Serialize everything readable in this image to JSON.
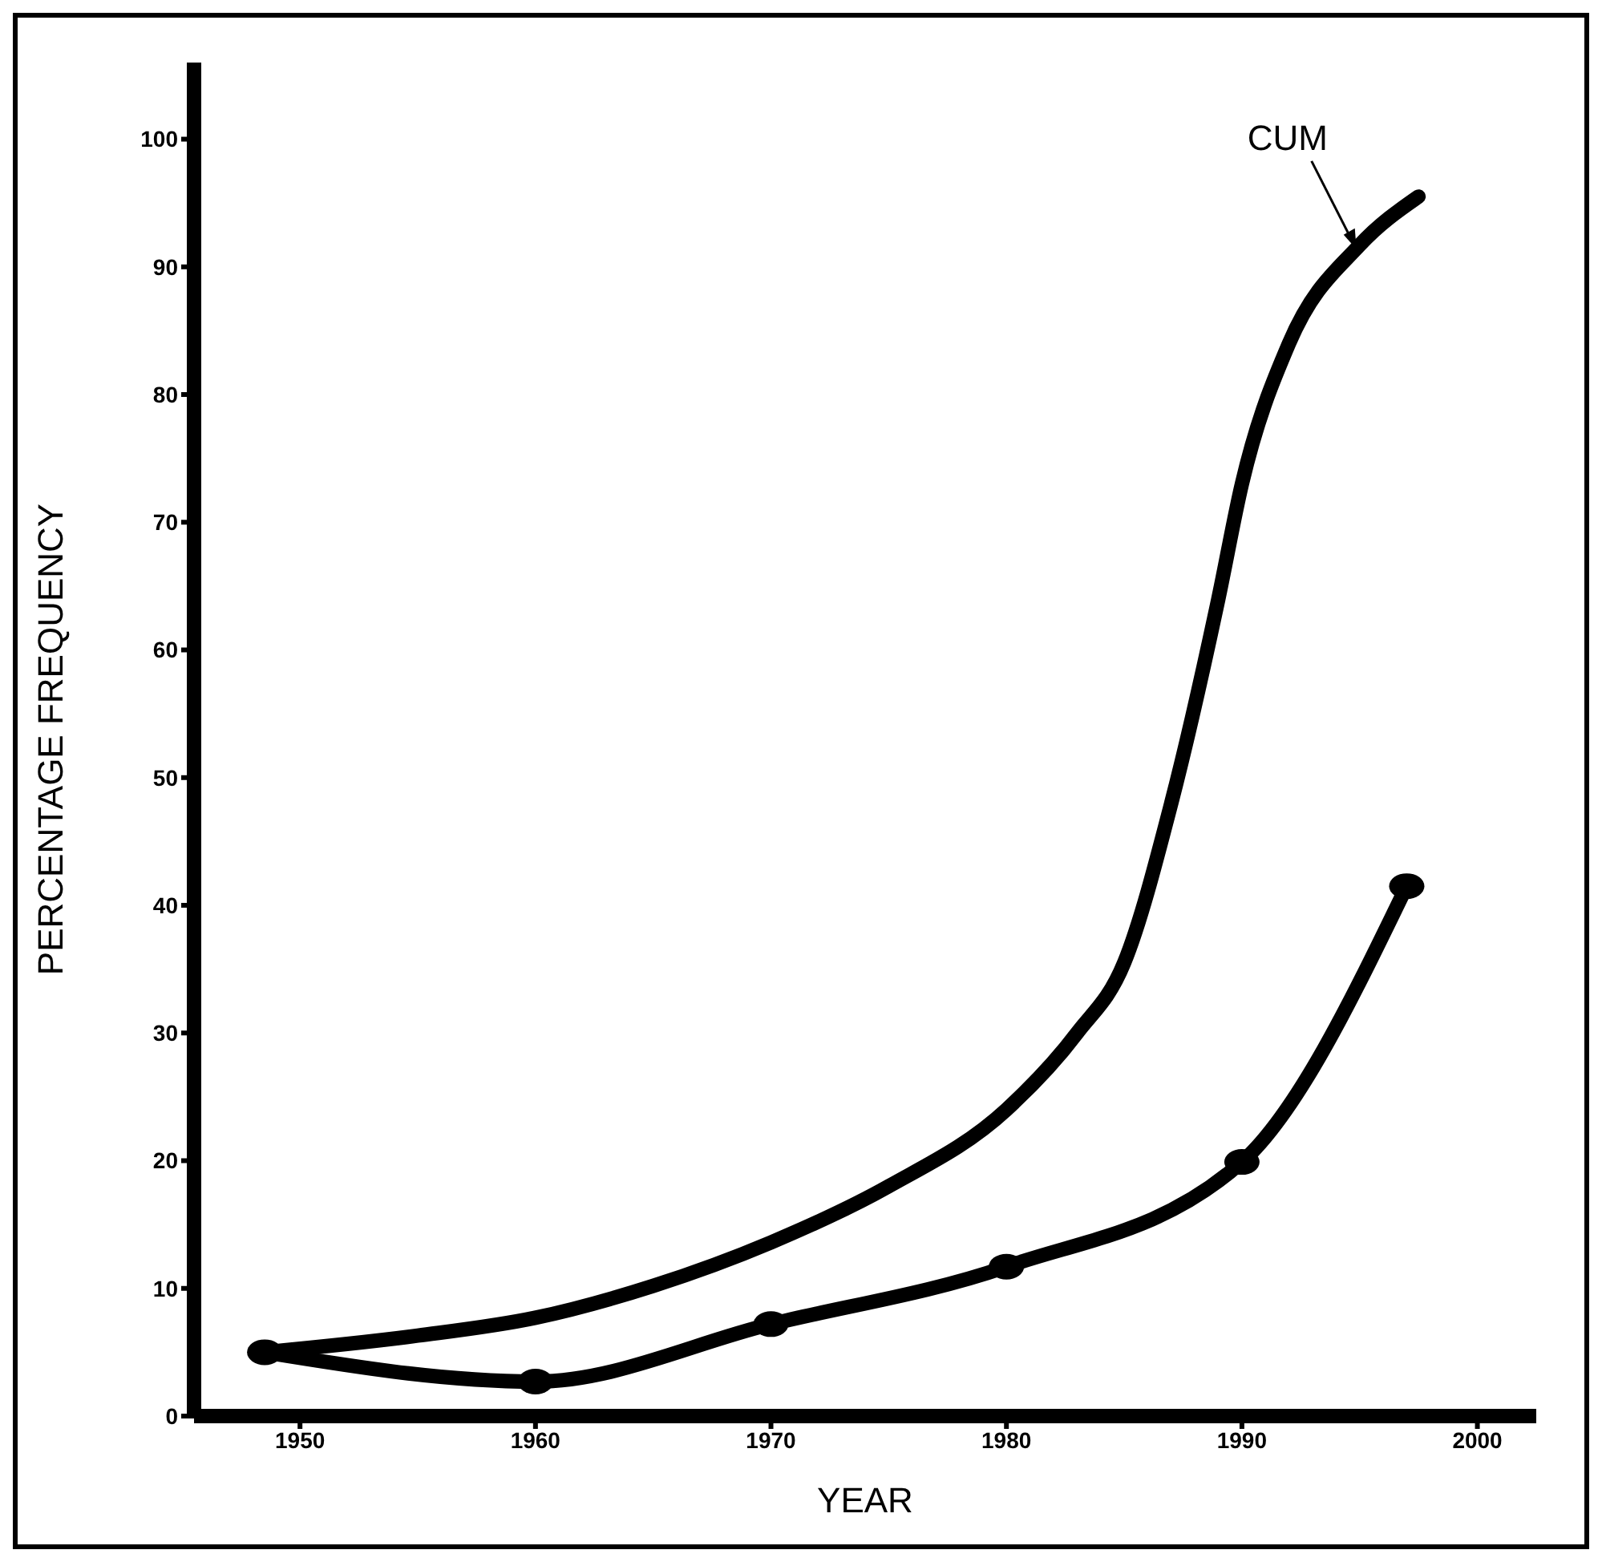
{
  "chart_data": {
    "type": "line",
    "xlabel": "YEAR",
    "ylabel": "PERCENTAGE FREQUENCY",
    "xlim": [
      1945.5,
      2002.5
    ],
    "ylim": [
      0,
      106
    ],
    "xticks": [
      1950,
      1960,
      1970,
      1980,
      1990,
      2000
    ],
    "yticks": [
      0,
      10,
      20,
      30,
      40,
      50,
      60,
      70,
      80,
      90,
      100
    ],
    "grid": false,
    "legend": false,
    "line_style": "solid",
    "series": [
      {
        "color": "#000000",
        "marker": "none",
        "x": [
          1948.5,
          1955,
          1960,
          1965,
          1970,
          1975,
          1980,
          1983,
          1985,
          1987,
          1989,
          1990,
          1992,
          1995,
          1997.5
        ],
        "values": [
          5,
          6.3,
          7.7,
          10.2,
          13.6,
          18,
          24,
          30,
          35.5,
          48,
          64,
          73,
          84,
          91.7,
          95.5
        ]
      },
      {
        "color": "#000000",
        "marker": "circle",
        "x": [
          1948.5,
          1960,
          1970,
          1980,
          1990,
          1997
        ],
        "values": [
          5,
          2.7,
          7.2,
          11.7,
          19.9,
          41.5
        ]
      }
    ],
    "annotations": [
      {
        "text": "CUM",
        "x": 1995,
        "y": 91
      }
    ]
  }
}
